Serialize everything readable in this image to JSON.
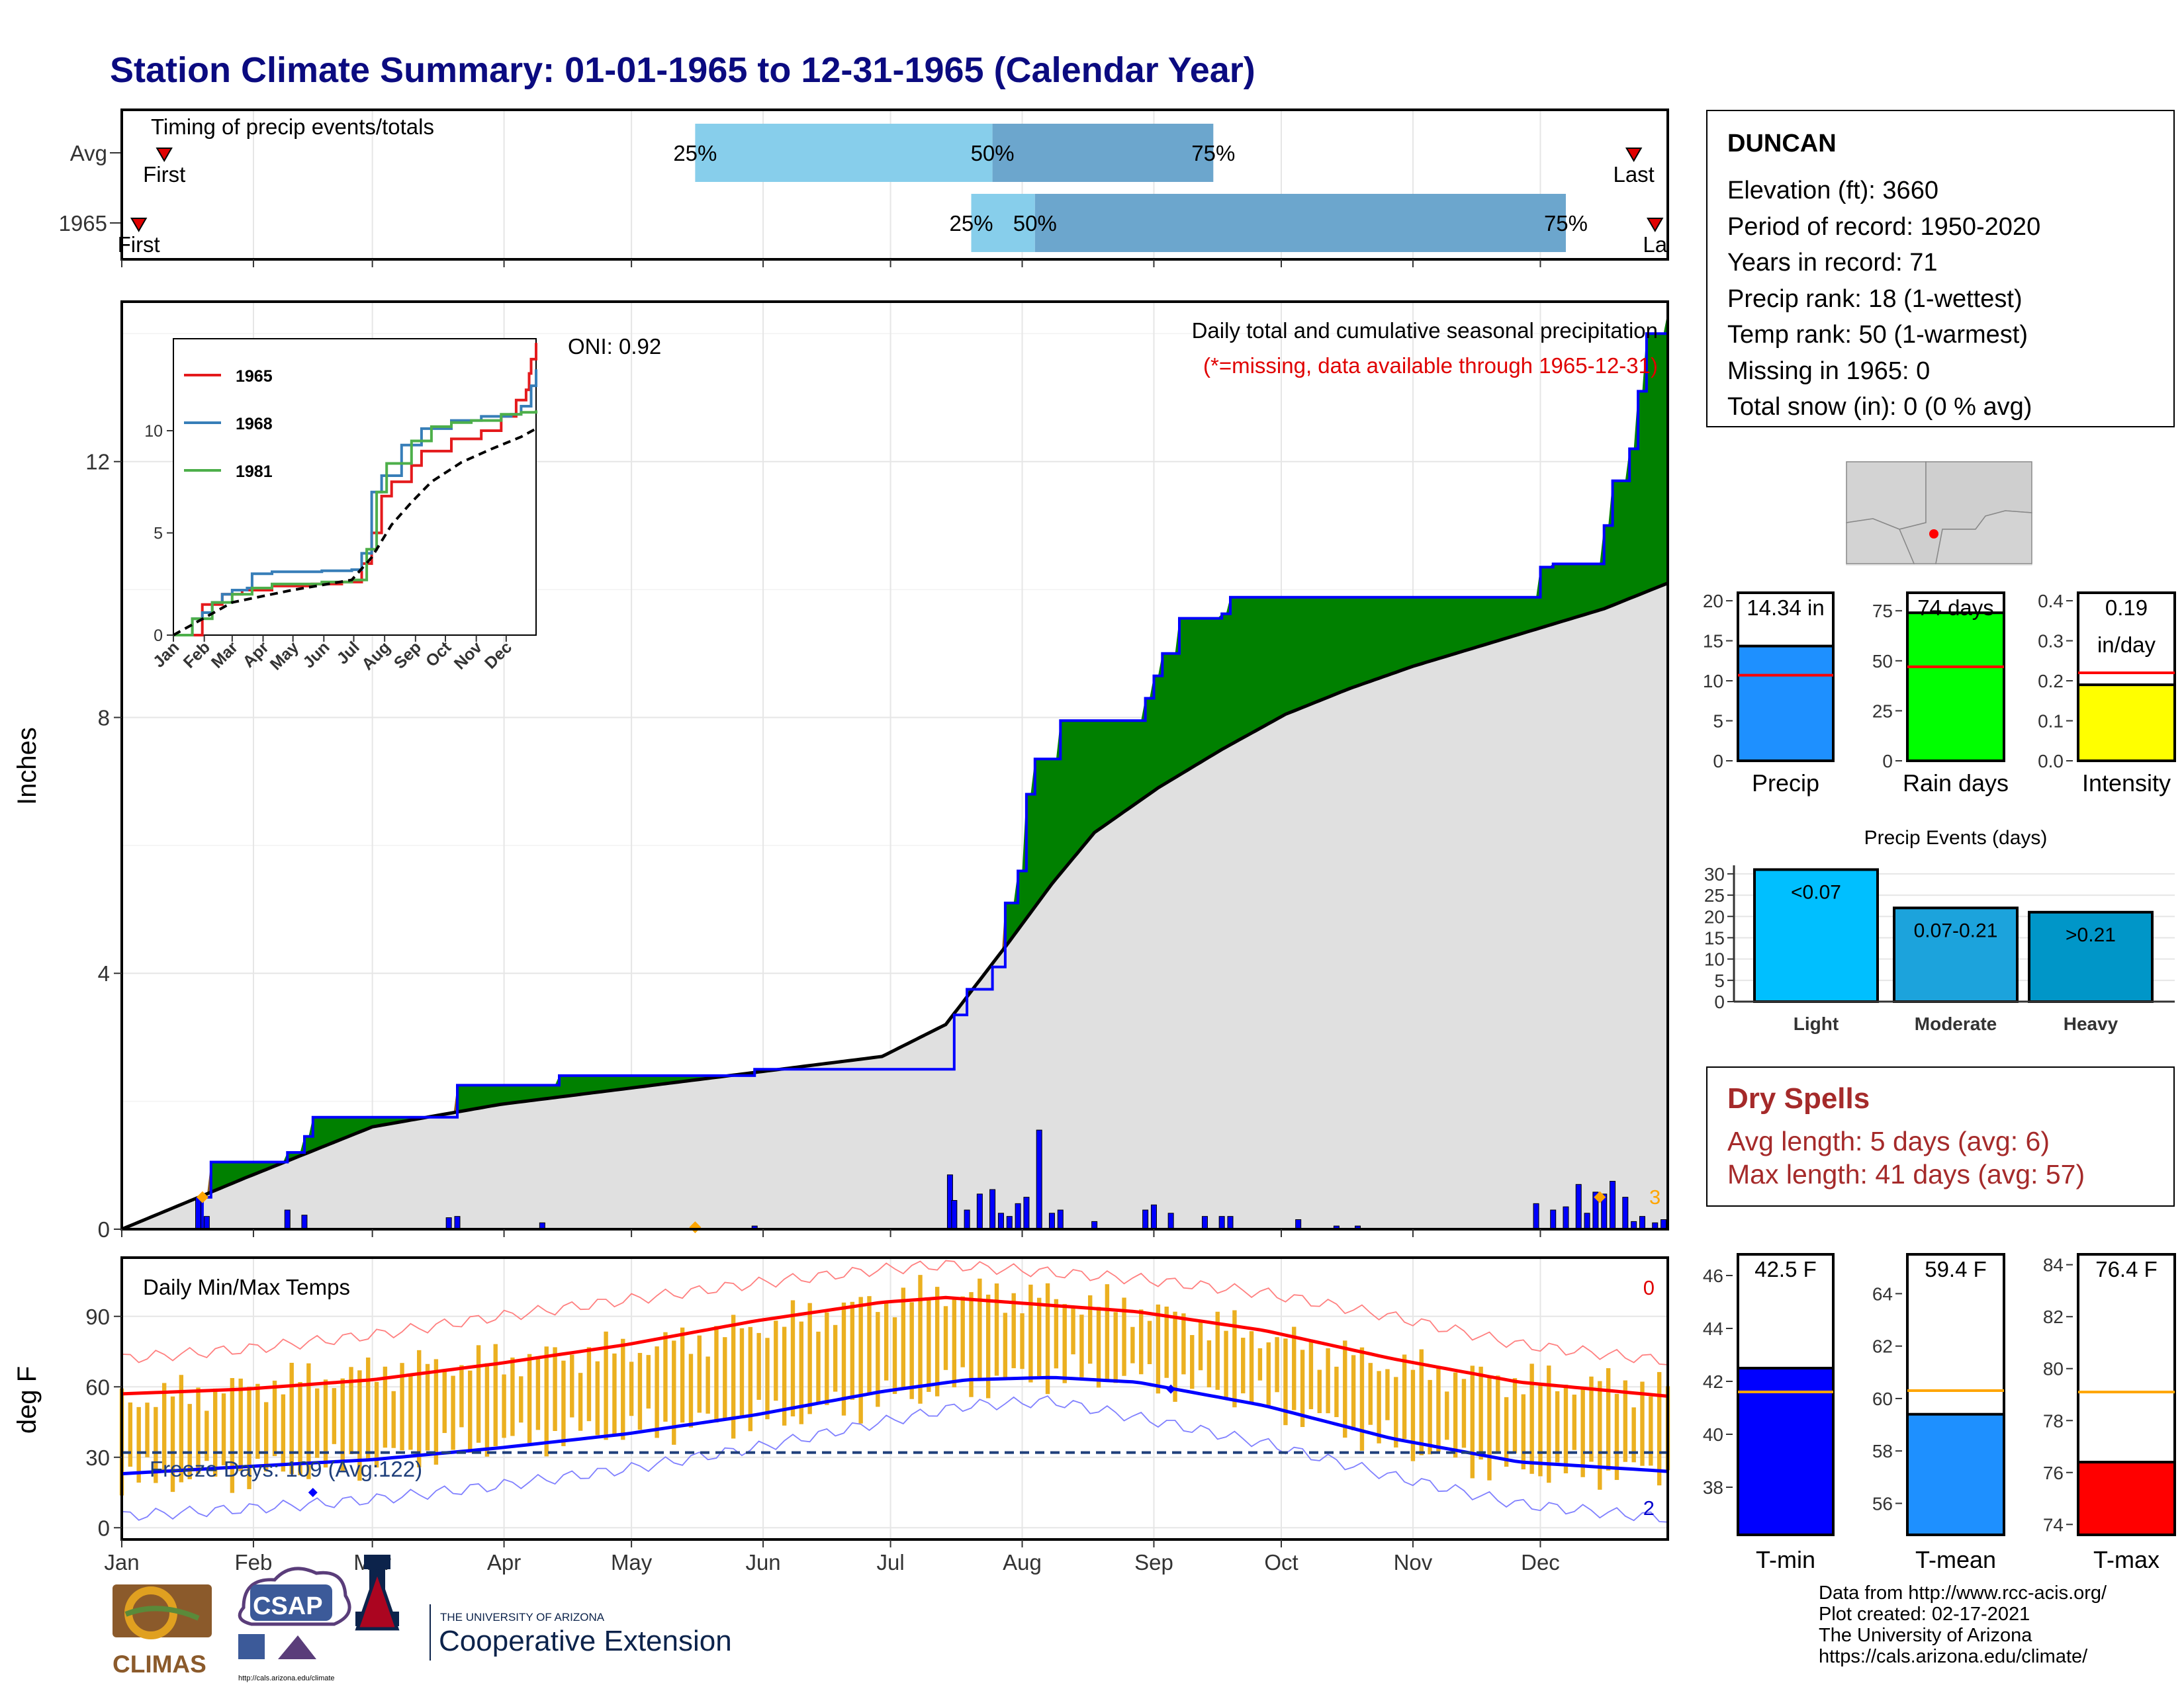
{
  "title": "Station Climate Summary: 01-01-1965 to 12-31-1965 (Calendar Year)",
  "colors": {
    "title": "#0b0b80",
    "green": "#008000",
    "brown": "#8b5a1a",
    "blue": "#0000ff",
    "light_blue": "#87ceeb",
    "mid_blue": "#6ca6cd",
    "gray": "#e0e0e0",
    "red": "#ff0000",
    "orange": "#ffa500",
    "temp_bar": "#ebb020",
    "dry_spells": "#a52a2a"
  },
  "timing": {
    "label": "Timing of precip events/totals",
    "rows": [
      {
        "label": "Avg",
        "first": "First",
        "last": "Last",
        "p25": "25%",
        "p50": "50%",
        "p75": "75%",
        "first_day": 11,
        "p25_day": 136,
        "p50_day": 206,
        "p75_day": 258,
        "last_day": 357
      },
      {
        "label": "1965",
        "first": "First",
        "last": "La",
        "p25": "25%",
        "p50": "50%",
        "p75": "75%",
        "first_day": 5,
        "p25_day": 201,
        "p50_day": 216,
        "p75_day": 341,
        "last_day": 362
      }
    ]
  },
  "precip_panel": {
    "ylabel": "Inches",
    "y_ticks": [
      "0",
      "4",
      "8",
      "12"
    ],
    "caption": "Daily total and cumulative seasonal precipitation",
    "missing_note": "(*=missing, data available through 1965-12-31)",
    "oni": "ONI: 0.92",
    "big_event_count": "3"
  },
  "inset": {
    "y_ticks": [
      "0",
      "5",
      "10"
    ],
    "x_ticks": [
      "Jan",
      "Feb",
      "Mar",
      "Apr",
      "May",
      "Jun",
      "Jul",
      "Aug",
      "Sep",
      "Oct",
      "Nov",
      "Dec"
    ],
    "legend": [
      {
        "name": "1965",
        "color": "#e41a1c"
      },
      {
        "name": "1968",
        "color": "#377eb8"
      },
      {
        "name": "1981",
        "color": "#4daf4a"
      }
    ]
  },
  "temp_panel": {
    "ylabel": "deg F",
    "label": "Daily Min/Max Temps",
    "y_ticks": [
      "0",
      "30",
      "60",
      "90"
    ],
    "freeze_text": "Freeze Days: 109 (Avg:122)",
    "count_hot": "0",
    "count_cold": "2",
    "months": [
      "Jan",
      "Feb",
      "Mar",
      "Apr",
      "May",
      "Jun",
      "Jul",
      "Aug",
      "Sep",
      "Oct",
      "Nov",
      "Dec"
    ]
  },
  "station": {
    "name": "DUNCAN",
    "lines": [
      "Elevation (ft): 3660",
      "Period of record: 1950-2020",
      "Years in record: 71",
      "Precip rank: 18 (1-wettest)",
      "Temp rank: 50 (1-warmest)",
      "Missing in 1965: 0",
      "Total snow (in): 0 (0 % avg)"
    ]
  },
  "summary_bars": [
    {
      "name": "Precip",
      "value_label": "14.34 in",
      "value_label2": "",
      "color": "#1e90ff",
      "ticks": [
        "0",
        "5",
        "10",
        "15",
        "20"
      ]
    },
    {
      "name": "Rain days",
      "value_label": "74 days",
      "value_label2": "",
      "color": "#00ff00",
      "ticks": [
        "0",
        "25",
        "50",
        "75"
      ]
    },
    {
      "name": "Intensity",
      "value_label": "0.19",
      "value_label2": "in/day",
      "color": "#ffff00",
      "ticks": [
        "0.0",
        "0.1",
        "0.2",
        "0.3",
        "0.4"
      ]
    }
  ],
  "events": {
    "title": "Precip Events (days)",
    "ticks": [
      "0",
      "5",
      "10",
      "15",
      "20",
      "25",
      "30"
    ],
    "bars": [
      {
        "category": "Light",
        "label": "<0.07",
        "value": 31,
        "color": "#00bfff"
      },
      {
        "category": "Moderate",
        "label": "0.07-0.21",
        "value": 22,
        "color": "#1ca3dc"
      },
      {
        "category": "Heavy",
        "label": ">0.21",
        "value": 21,
        "color": "#0096c8"
      }
    ]
  },
  "dry_spells": {
    "title": "Dry Spells",
    "avg": "Avg length: 5 days (avg: 6)",
    "max": "Max length: 41 days (avg: 57)"
  },
  "temp_bars": [
    {
      "name": "T-min",
      "value_label": "42.5 F",
      "color": "#0000ff",
      "ticks": [
        "38",
        "40",
        "42",
        "44",
        "46"
      ]
    },
    {
      "name": "T-mean",
      "value_label": "59.4 F",
      "color": "#1e90ff",
      "ticks": [
        "56",
        "58",
        "60",
        "62",
        "64"
      ]
    },
    {
      "name": "T-max",
      "value_label": "76.4 F",
      "color": "#ff0000",
      "ticks": [
        "74",
        "76",
        "78",
        "80",
        "82",
        "84"
      ]
    }
  ],
  "logos": {
    "climas": "CLIMAS",
    "csap": "CSAP",
    "csap_url": "http://cals.arizona.edu/climate",
    "ua_small": "THE UNIVERSITY OF ARIZONA",
    "ua_big": "Cooperative Extension"
  },
  "credits": [
    "Data from http://www.rcc-acis.org/",
    "Plot created: 02-17-2021",
    "The University of Arizona",
    "https://cals.arizona.edu/climate/"
  ],
  "chart_data": [
    {
      "type": "area",
      "title": "Daily total and cumulative seasonal precipitation",
      "ylabel": "Inches",
      "ylim": [
        0,
        14.5
      ],
      "x_unit": "day of year",
      "series": [
        {
          "name": "1965",
          "x": [
            1,
            20,
            22,
            40,
            44,
            46,
            78,
            80,
            104,
            124,
            150,
            180,
            196,
            197,
            200,
            206,
            209,
            212,
            214,
            216,
            220,
            222,
            242,
            244,
            246,
            250,
            256,
            260,
            262,
            278,
            292,
            320,
            335,
            338,
            350,
            352,
            356,
            358,
            360,
            365
          ],
          "y": [
            0,
            0.5,
            1.05,
            1.2,
            1.45,
            1.75,
            1.75,
            2.25,
            2.4,
            2.4,
            2.5,
            2.5,
            2.5,
            3.35,
            3.75,
            4.1,
            5.1,
            5.6,
            6.8,
            7.35,
            7.35,
            7.95,
            8.3,
            8.65,
            9.0,
            9.55,
            9.55,
            9.62,
            9.88,
            9.88,
            9.88,
            9.88,
            10.35,
            10.4,
            11.0,
            11.7,
            12.2,
            13.1,
            14.0,
            14.34
          ]
        },
        {
          "name": "Average",
          "x": [
            1,
            30,
            60,
            90,
            120,
            150,
            180,
            195,
            210,
            220,
            230,
            245,
            260,
            275,
            290,
            305,
            320,
            335,
            350,
            365
          ],
          "y": [
            0,
            0.8,
            1.6,
            1.95,
            2.2,
            2.45,
            2.7,
            3.2,
            4.5,
            5.4,
            6.2,
            6.9,
            7.5,
            8.05,
            8.45,
            8.8,
            9.1,
            9.4,
            9.7,
            10.1
          ]
        }
      ],
      "daily_bars": {
        "x": [
          19,
          21,
          40,
          44,
          78,
          80,
          100,
          150,
          196,
          197,
          200,
          203,
          206,
          208,
          210,
          212,
          214,
          217,
          220,
          222,
          230,
          242,
          244,
          248,
          256,
          260,
          262,
          278,
          287,
          292,
          334,
          338,
          341,
          344,
          346,
          348,
          350,
          352,
          355,
          357,
          359,
          362,
          364
        ],
        "y": [
          0.5,
          0.2,
          0.3,
          0.22,
          0.18,
          0.2,
          0.1,
          0.05,
          0.85,
          0.45,
          0.3,
          0.55,
          0.62,
          0.25,
          0.2,
          0.4,
          0.5,
          1.55,
          0.25,
          0.3,
          0.12,
          0.3,
          0.38,
          0.25,
          0.2,
          0.2,
          0.2,
          0.15,
          0.05,
          0.05,
          0.4,
          0.3,
          0.35,
          0.7,
          0.25,
          0.58,
          0.55,
          0.75,
          0.5,
          0.12,
          0.2,
          0.1,
          0.15
        ]
      }
    },
    {
      "type": "line",
      "title": "",
      "ylim": [
        0,
        14.5
      ],
      "series": [
        {
          "name": "1965",
          "x": [
            1,
            30,
            50,
            70,
            100,
            140,
            170,
            190,
            200,
            210,
            220,
            240,
            250,
            280,
            310,
            330,
            345,
            355,
            358,
            360,
            365
          ],
          "y": [
            0,
            1.5,
            2,
            2.2,
            2.4,
            2.5,
            2.6,
            3.5,
            5,
            6.8,
            7.5,
            8.3,
            9,
            9.6,
            10,
            10.7,
            11.5,
            12,
            12.8,
            13.5,
            14.3
          ]
        },
        {
          "name": "1968",
          "x": [
            1,
            20,
            30,
            40,
            50,
            60,
            75,
            80,
            100,
            150,
            180,
            190,
            200,
            210,
            230,
            250,
            280,
            310,
            340,
            350,
            360,
            365
          ],
          "y": [
            0,
            0.8,
            1.1,
            1.6,
            2,
            2.2,
            2.3,
            3.0,
            3.1,
            3.15,
            3.2,
            4,
            7,
            7.8,
            9.3,
            10.1,
            10.5,
            10.7,
            10.8,
            11.2,
            12.2,
            13
          ]
        },
        {
          "name": "1981",
          "x": [
            1,
            20,
            40,
            60,
            80,
            100,
            150,
            180,
            195,
            205,
            215,
            240,
            260,
            280,
            300,
            330,
            350,
            365
          ],
          "y": [
            0,
            0.8,
            1.6,
            2,
            2.3,
            2.5,
            2.6,
            2.7,
            4.2,
            7,
            8.4,
            9.5,
            10.2,
            10.4,
            10.5,
            10.8,
            10.9,
            11
          ]
        },
        {
          "name": "Average",
          "x": [
            1,
            60,
            120,
            180,
            200,
            220,
            240,
            260,
            290,
            320,
            350,
            365
          ],
          "y": [
            0,
            1.6,
            2.2,
            2.7,
            3.8,
            5.4,
            6.5,
            7.5,
            8.45,
            9.1,
            9.7,
            10.1
          ]
        }
      ],
      "x_ticks": [
        "Jan",
        "Feb",
        "Mar",
        "Apr",
        "May",
        "Jun",
        "Jul",
        "Aug",
        "Sep",
        "Oct",
        "Nov",
        "Dec"
      ]
    },
    {
      "type": "line",
      "title": "Daily Min/Max Temps",
      "ylabel": "deg F",
      "ylim": [
        -5,
        115
      ],
      "freeze_line": 32,
      "series": [
        {
          "name": "Avg max",
          "x": [
            1,
            30,
            60,
            90,
            120,
            150,
            180,
            195,
            210,
            240,
            270,
            300,
            330,
            365
          ],
          "y": [
            57,
            59,
            63,
            70,
            78,
            88,
            96,
            98,
            96,
            92,
            84,
            72,
            62,
            56
          ]
        },
        {
          "name": "Avg min",
          "x": [
            1,
            30,
            60,
            90,
            120,
            150,
            180,
            200,
            220,
            240,
            270,
            300,
            330,
            365
          ],
          "y": [
            23,
            26,
            29,
            34,
            40,
            48,
            58,
            63,
            64,
            62,
            52,
            38,
            28,
            24
          ]
        },
        {
          "name": "Record max",
          "x": [
            1,
            30,
            60,
            90,
            120,
            150,
            180,
            195,
            210,
            240,
            270,
            300,
            330,
            365
          ],
          "y": [
            72,
            76,
            82,
            90,
            97,
            104,
            110,
            112,
            110,
            106,
            100,
            90,
            78,
            71
          ]
        },
        {
          "name": "Record min",
          "x": [
            1,
            30,
            60,
            90,
            120,
            150,
            180,
            200,
            220,
            240,
            270,
            300,
            330,
            365
          ],
          "y": [
            5,
            8,
            12,
            18,
            25,
            34,
            45,
            52,
            54,
            47,
            36,
            22,
            10,
            4
          ]
        }
      ]
    },
    {
      "type": "bar",
      "categories": [
        "Light",
        "Moderate",
        "Heavy"
      ],
      "values": [
        31,
        22,
        21
      ],
      "title": "Precip Events (days)",
      "ylim": [
        0,
        32
      ]
    },
    {
      "type": "bar",
      "categories": [
        "Precip",
        "Rain days",
        "Intensity"
      ],
      "values": [
        14.34,
        74,
        0.19
      ],
      "averages": [
        10.7,
        47,
        0.22
      ],
      "ylims": [
        [
          0,
          21
        ],
        [
          0,
          84
        ],
        [
          0,
          0.42
        ]
      ]
    },
    {
      "type": "bar",
      "categories": [
        "T-min",
        "T-mean",
        "T-max"
      ],
      "values": [
        42.5,
        59.4,
        76.4
      ],
      "averages": [
        41.6,
        60.3,
        79.1
      ],
      "ylims": [
        [
          36.2,
          46.8
        ],
        [
          54.8,
          65.5
        ],
        [
          73.6,
          84.4
        ]
      ]
    }
  ]
}
